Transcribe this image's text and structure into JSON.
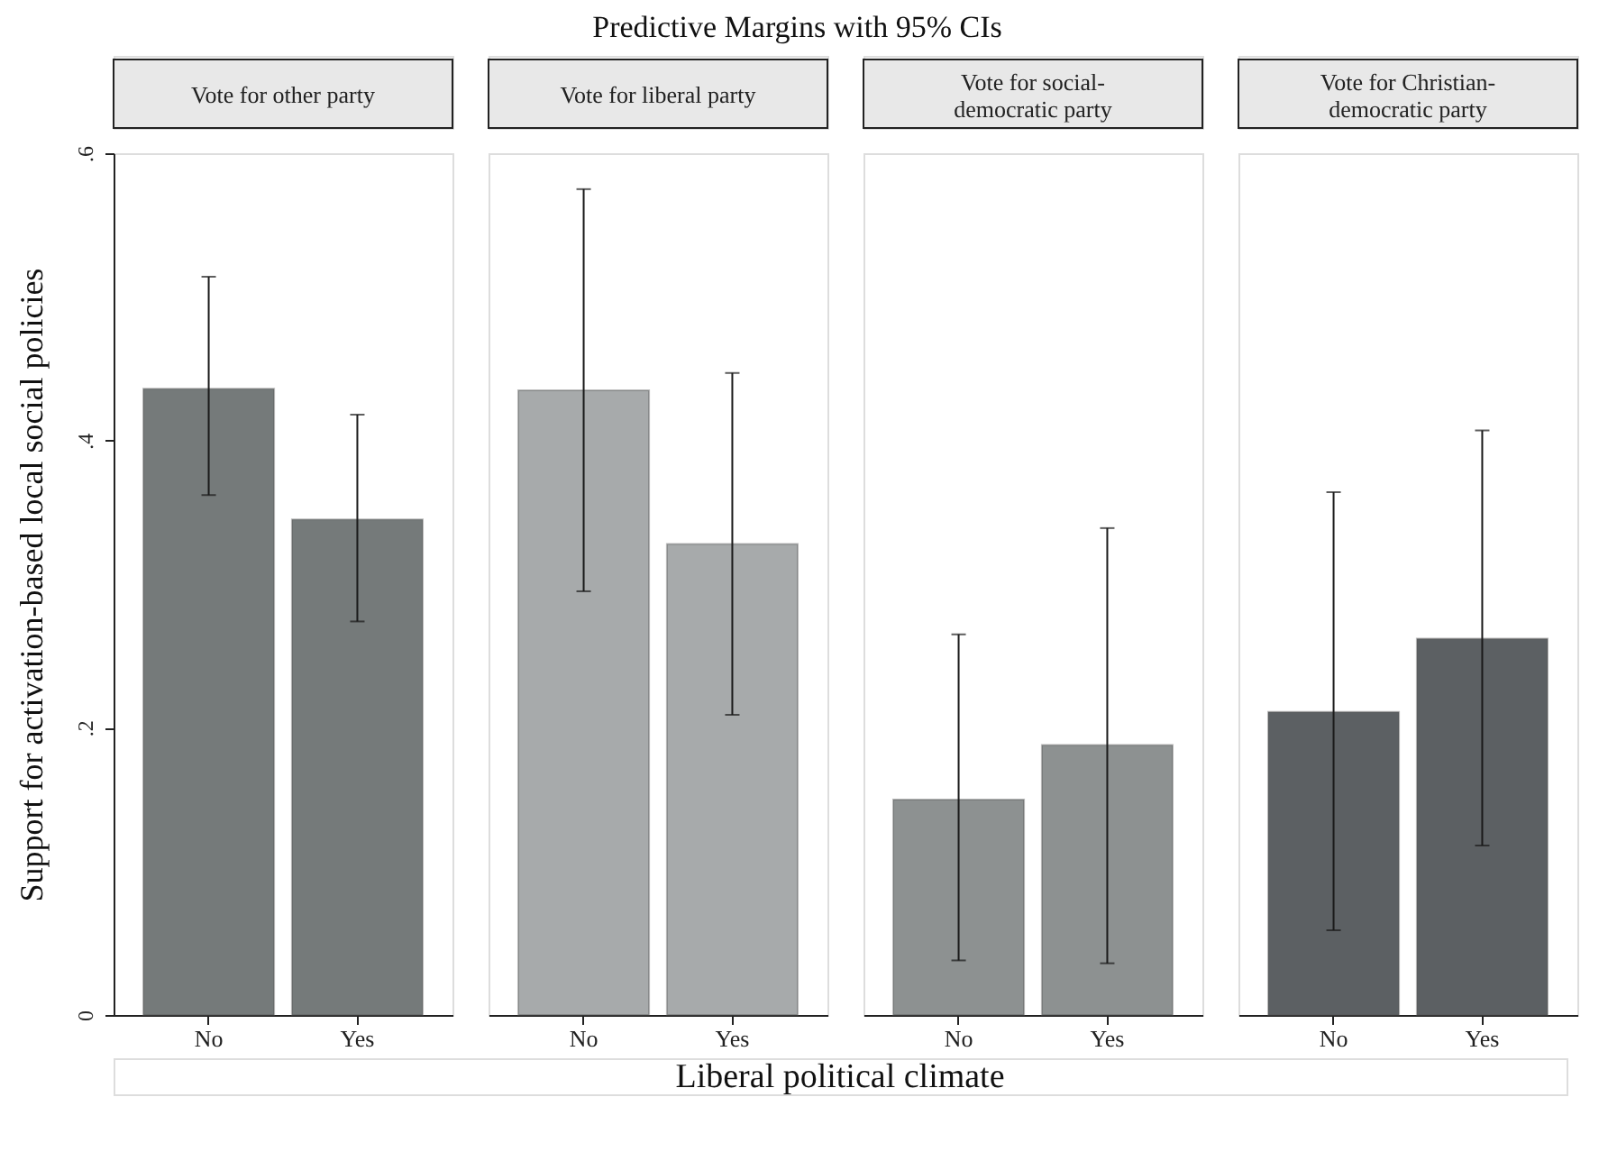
{
  "chart_data": [
    {
      "type": "bar",
      "title": "Vote for other party",
      "annotations": [
        "Predictive Margins with 95% CIs",
        "Liberal political climate"
      ],
      "ylabel": "Support for activation-based local social policies",
      "categories": [
        "No",
        "Yes"
      ],
      "values": [
        0.436,
        0.345
      ],
      "errors": [
        [
          0.362,
          0.514
        ],
        [
          0.274,
          0.418
        ]
      ],
      "color": "#757a7a",
      "ylim": [
        0,
        0.6
      ],
      "yticks": [
        0,
        {
          "value": 0.2,
          "label": ".2"
        },
        {
          "value": 0.4,
          "label": ".4"
        },
        {
          "value": 0.6,
          "label": ".6"
        }
      ],
      "grid": false
    },
    {
      "type": "bar",
      "title": "Vote for liberal party",
      "categories": [
        "No",
        "Yes"
      ],
      "values": [
        0.435,
        0.328
      ],
      "errors": [
        [
          0.295,
          0.575
        ],
        [
          0.209,
          0.447
        ]
      ],
      "color": "#a7aaab",
      "ylim": [
        0,
        0.6
      ],
      "tick_labels": "x",
      "grid": false
    },
    {
      "type": "bar",
      "title": "Vote for social-democratic party",
      "categories": [
        "No",
        "Yes"
      ],
      "values": [
        0.15,
        0.188
      ],
      "errors": [
        [
          0.038,
          0.265
        ],
        [
          0.036,
          0.339
        ]
      ],
      "color": "#8d9191",
      "ylim": [
        0,
        0.6
      ],
      "tick_labels": "x",
      "grid": false
    },
    {
      "type": "bar",
      "title": "Vote for Christian-democratic party",
      "categories": [
        "No",
        "Yes"
      ],
      "values": [
        0.211,
        0.262
      ],
      "errors": [
        [
          0.059,
          0.364
        ],
        [
          0.118,
          0.407
        ]
      ],
      "color": "#5c6063",
      "ylim": [
        0,
        0.6
      ],
      "tick_labels": "x",
      "grid": false
    }
  ]
}
